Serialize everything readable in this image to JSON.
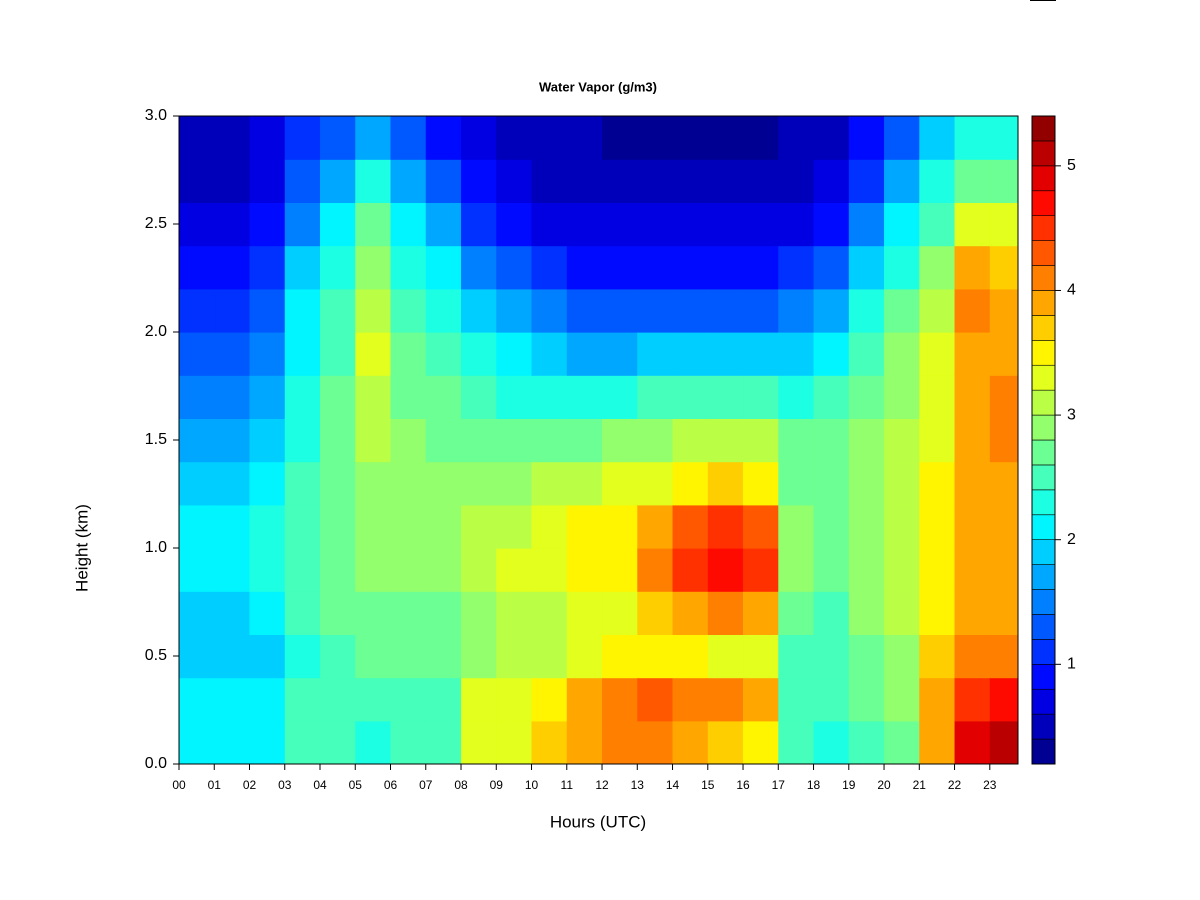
{
  "chart_data": {
    "type": "heatmap",
    "title": "Water Vapor (g/m3)",
    "x_label": "Hours (UTC)",
    "y_label": "Height (km)",
    "colormap": "jet",
    "x": [
      0,
      1,
      2,
      3,
      4,
      5,
      6,
      7,
      8,
      9,
      10,
      11,
      12,
      13,
      14,
      15,
      16,
      17,
      18,
      19,
      20,
      21,
      22,
      23
    ],
    "y": [
      0,
      0.2,
      0.4,
      0.6,
      0.8,
      1.0,
      1.2,
      1.4,
      1.6,
      1.8,
      2.0,
      2.2,
      2.4,
      2.6,
      2.8
    ],
    "z": [
      [
        2.0,
        2.0,
        1.8,
        1.9,
        2.0,
        2.0,
        1.8,
        1.6,
        1.4,
        1.2,
        1.0,
        0.9,
        0.7,
        0.5,
        0.4
      ],
      [
        2.0,
        2.0,
        1.8,
        1.9,
        2.1,
        2.1,
        1.9,
        1.7,
        1.5,
        1.3,
        1.1,
        0.9,
        0.7,
        0.5,
        0.4
      ],
      [
        2.1,
        2.1,
        1.9,
        2.0,
        2.2,
        2.2,
        2.1,
        1.9,
        1.7,
        1.5,
        1.3,
        1.1,
        0.9,
        0.7,
        0.6
      ],
      [
        2.4,
        2.4,
        2.3,
        2.4,
        2.5,
        2.5,
        2.4,
        2.3,
        2.2,
        2.1,
        2.0,
        1.8,
        1.5,
        1.2,
        1.0
      ],
      [
        2.4,
        2.5,
        2.5,
        2.6,
        2.7,
        2.7,
        2.7,
        2.7,
        2.6,
        2.5,
        2.4,
        2.2,
        2.0,
        1.6,
        1.3
      ],
      [
        2.3,
        2.5,
        2.6,
        2.7,
        2.8,
        2.8,
        2.9,
        3.0,
        3.1,
        3.2,
        3.1,
        2.9,
        2.6,
        2.2,
        1.7
      ],
      [
        2.4,
        2.5,
        2.6,
        2.7,
        2.8,
        2.8,
        2.8,
        2.8,
        2.7,
        2.6,
        2.5,
        2.3,
        2.0,
        1.6,
        1.3
      ],
      [
        2.4,
        2.5,
        2.6,
        2.7,
        2.8,
        2.8,
        2.8,
        2.7,
        2.6,
        2.5,
        2.3,
        2.0,
        1.6,
        1.2,
        0.9
      ],
      [
        3.2,
        3.2,
        2.9,
        2.9,
        3.1,
        3.0,
        2.8,
        2.6,
        2.4,
        2.2,
        1.9,
        1.5,
        1.1,
        0.8,
        0.6
      ],
      [
        3.3,
        3.3,
        3.0,
        3.0,
        3.2,
        3.1,
        2.9,
        2.6,
        2.3,
        2.0,
        1.6,
        1.2,
        0.9,
        0.6,
        0.5
      ],
      [
        3.6,
        3.5,
        3.1,
        3.1,
        3.3,
        3.3,
        3.0,
        2.7,
        2.3,
        1.8,
        1.4,
        1.0,
        0.7,
        0.5,
        0.4
      ],
      [
        3.8,
        3.8,
        3.3,
        3.2,
        3.4,
        3.4,
        3.1,
        2.7,
        2.2,
        1.7,
        1.2,
        0.9,
        0.6,
        0.4,
        0.4
      ],
      [
        4.0,
        4.0,
        3.4,
        3.3,
        3.5,
        3.5,
        3.2,
        2.8,
        2.3,
        1.7,
        1.2,
        0.8,
        0.6,
        0.4,
        0.3
      ],
      [
        4.1,
        4.2,
        3.5,
        3.6,
        4.0,
        3.8,
        3.3,
        2.9,
        2.4,
        1.8,
        1.3,
        0.9,
        0.6,
        0.4,
        0.3
      ],
      [
        3.9,
        4.1,
        3.5,
        3.9,
        4.4,
        4.2,
        3.5,
        3.0,
        2.5,
        1.9,
        1.3,
        0.9,
        0.6,
        0.4,
        0.3
      ],
      [
        3.6,
        4.0,
        3.3,
        4.0,
        4.6,
        4.4,
        3.6,
        3.0,
        2.5,
        1.9,
        1.3,
        0.8,
        0.6,
        0.4,
        0.3
      ],
      [
        3.4,
        3.9,
        3.2,
        3.9,
        4.5,
        4.3,
        3.5,
        3.0,
        2.4,
        1.8,
        1.2,
        0.8,
        0.6,
        0.4,
        0.3
      ],
      [
        2.4,
        2.5,
        2.4,
        2.6,
        2.8,
        2.8,
        2.7,
        2.6,
        2.3,
        1.9,
        1.4,
        1.0,
        0.7,
        0.5,
        0.4
      ],
      [
        2.3,
        2.4,
        2.4,
        2.5,
        2.7,
        2.7,
        2.7,
        2.6,
        2.4,
        2.1,
        1.7,
        1.3,
        0.9,
        0.7,
        0.5
      ],
      [
        2.5,
        2.6,
        2.7,
        2.8,
        2.9,
        2.9,
        2.9,
        2.8,
        2.7,
        2.5,
        2.2,
        1.8,
        1.4,
        1.1,
        0.8
      ],
      [
        2.7,
        2.8,
        2.9,
        3.0,
        3.1,
        3.1,
        3.1,
        3.0,
        2.9,
        2.8,
        2.6,
        2.3,
        2.0,
        1.6,
        1.3
      ],
      [
        3.8,
        3.8,
        3.6,
        3.5,
        3.5,
        3.5,
        3.4,
        3.3,
        3.3,
        3.2,
        3.0,
        2.8,
        2.5,
        2.2,
        1.9
      ],
      [
        4.8,
        4.4,
        4.0,
        3.8,
        3.8,
        3.8,
        3.8,
        3.8,
        3.9,
        3.9,
        4.0,
        3.8,
        3.3,
        2.7,
        2.2
      ],
      [
        5.0,
        4.6,
        4.1,
        3.9,
        3.8,
        3.8,
        3.9,
        4.0,
        4.0,
        3.9,
        3.8,
        3.6,
        3.2,
        2.6,
        2.2
      ]
    ],
    "xlim": [
      0,
      23.8
    ],
    "ylim": [
      0,
      3.0
    ],
    "xticks": [
      {
        "value": 0,
        "label": "00"
      },
      {
        "value": 1,
        "label": "01"
      },
      {
        "value": 2,
        "label": "02"
      },
      {
        "value": 3,
        "label": "03"
      },
      {
        "value": 4,
        "label": "04"
      },
      {
        "value": 5,
        "label": "05"
      },
      {
        "value": 6,
        "label": "06"
      },
      {
        "value": 7,
        "label": "07"
      },
      {
        "value": 8,
        "label": "08"
      },
      {
        "value": 9,
        "label": "09"
      },
      {
        "value": 10,
        "label": "10"
      },
      {
        "value": 11,
        "label": "11"
      },
      {
        "value": 12,
        "label": "12"
      },
      {
        "value": 13,
        "label": "13"
      },
      {
        "value": 14,
        "label": "14"
      },
      {
        "value": 15,
        "label": "15"
      },
      {
        "value": 16,
        "label": "16"
      },
      {
        "value": 17,
        "label": "17"
      },
      {
        "value": 18,
        "label": "18"
      },
      {
        "value": 19,
        "label": "19"
      },
      {
        "value": 20,
        "label": "20"
      },
      {
        "value": 21,
        "label": "21"
      },
      {
        "value": 22,
        "label": "22"
      },
      {
        "value": 23,
        "label": "23"
      }
    ],
    "yticks": [
      {
        "value": 0,
        "label": "0.0"
      },
      0.5,
      {
        "value": 1,
        "label": "1.0"
      },
      1.5,
      {
        "value": 2,
        "label": "2.0"
      },
      2.5,
      {
        "value": 3,
        "label": "3.0"
      }
    ],
    "levels": [
      0.2,
      0.4,
      0.6,
      0.8,
      1.0,
      1.2,
      1.4,
      1.6,
      1.8,
      2.0,
      2.2,
      2.4,
      2.6,
      2.8,
      3.0,
      3.2,
      3.4,
      3.6,
      3.8,
      4.0,
      4.2,
      4.4,
      4.6,
      4.8,
      5.0,
      5.2,
      5.4
    ],
    "zticks": [
      1,
      2,
      3,
      4,
      5
    ]
  }
}
